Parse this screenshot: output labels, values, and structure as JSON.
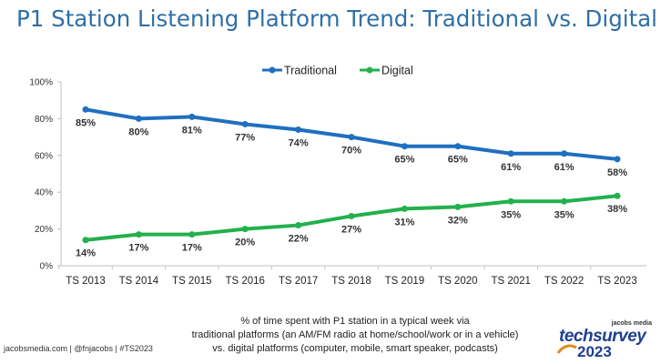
{
  "chart_data": {
    "type": "line",
    "title": "P1 Station Listening Platform Trend: Traditional vs. Digital",
    "categories": [
      "TS 2013",
      "TS 2014",
      "TS 2015",
      "TS 2016",
      "TS 2017",
      "TS 2018",
      "TS 2019",
      "TS 2020",
      "TS 2021",
      "TS 2022",
      "TS 2023"
    ],
    "series": [
      {
        "name": "Traditional",
        "color": "#1f6fbf",
        "values": [
          85,
          80,
          81,
          77,
          74,
          70,
          65,
          65,
          61,
          61,
          58
        ],
        "labels": [
          "85%",
          "80%",
          "81%",
          "77%",
          "74%",
          "70%",
          "65%",
          "65%",
          "61%",
          "61%",
          "58%"
        ]
      },
      {
        "name": "Digital",
        "color": "#22b14c",
        "values": [
          14,
          17,
          17,
          20,
          22,
          27,
          31,
          32,
          35,
          35,
          38
        ],
        "labels": [
          "14%",
          "17%",
          "17%",
          "20%",
          "22%",
          "27%",
          "31%",
          "32%",
          "35%",
          "35%",
          "38%"
        ]
      }
    ],
    "ylim": [
      0,
      100
    ],
    "yticks": [
      0,
      20,
      40,
      60,
      80,
      100
    ],
    "ytick_labels": [
      "0%",
      "20%",
      "40%",
      "60%",
      "80%",
      "100%"
    ],
    "grid": false,
    "legend_position": "top-center"
  },
  "caption": {
    "line1": "% of time spent with P1 station in a typical week via",
    "line2": "traditional platforms (an AM/FM radio at home/school/work or in a vehicle)",
    "line3": "vs. digital platforms (computer, mobile, smart speaker, podcasts)"
  },
  "footer": {
    "left": "jacobsmedia.com  |  @fnjacobs  |  #TS2023"
  },
  "brand": {
    "sub": "jacobs media",
    "name": "techsurvey",
    "year": "2023"
  }
}
